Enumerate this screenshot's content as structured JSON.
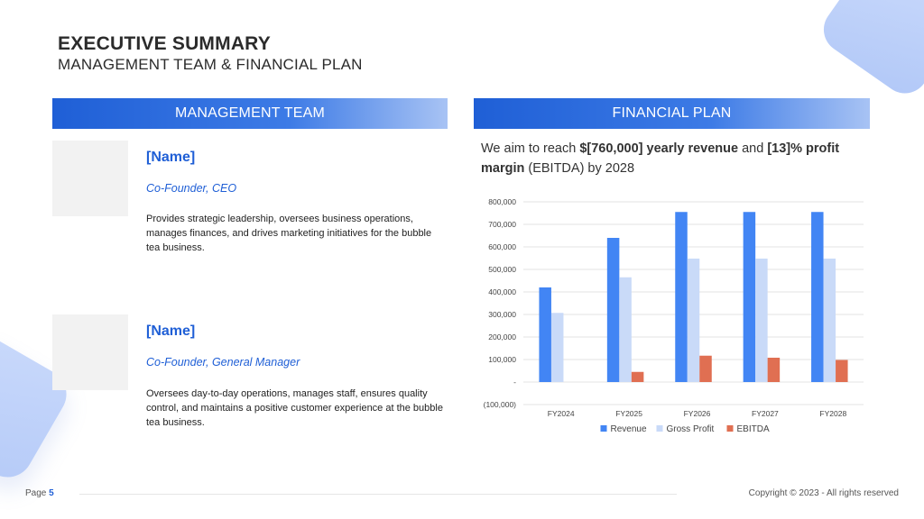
{
  "header": {
    "title": "EXECUTIVE SUMMARY",
    "subtitle": "MANAGEMENT TEAM & FINANCIAL PLAN"
  },
  "management": {
    "heading": "MANAGEMENT TEAM",
    "members": [
      {
        "name": "[Name]",
        "role": "Co-Founder, CEO",
        "description": "Provides strategic leadership, oversees business operations, manages finances, and drives marketing initiatives for the bubble tea business."
      },
      {
        "name": "[Name]",
        "role": "Co-Founder, General Manager",
        "description": "Oversees day-to-day operations, manages staff, ensures quality control, and maintains a positive customer experience at the bubble tea business."
      }
    ]
  },
  "financial": {
    "heading": "FINANCIAL PLAN",
    "intro": {
      "t1": "We aim to reach ",
      "b1": "$[760,000] yearly revenue",
      "t2": " and ",
      "b2": "[13]% profit margin",
      "t3": " (EBITDA) by 2028"
    }
  },
  "chart_data": {
    "type": "bar",
    "categories": [
      "FY2024",
      "FY2025",
      "FY2026",
      "FY2027",
      "FY2028"
    ],
    "series": [
      {
        "name": "Revenue",
        "color": "#4285f4",
        "values": [
          420000,
          640000,
          755000,
          755000,
          755000
        ]
      },
      {
        "name": "Gross Profit",
        "color": "#c9daf8",
        "values": [
          307000,
          465000,
          548000,
          548000,
          548000
        ]
      },
      {
        "name": "EBITDA",
        "color": "#e06f52",
        "values": [
          0,
          45000,
          117000,
          108000,
          98000
        ]
      }
    ],
    "ylim": [
      -100000,
      800000
    ],
    "yticks": [
      -100000,
      0,
      100000,
      200000,
      300000,
      400000,
      500000,
      600000,
      700000,
      800000
    ],
    "ytick_labels": [
      "(100,000)",
      "-",
      "100,000",
      "200,000",
      "300,000",
      "400,000",
      "500,000",
      "600,000",
      "700,000",
      "800,000"
    ],
    "grid": true,
    "legend": "bottom"
  },
  "footer": {
    "page_label": "Page",
    "page_number": "5",
    "copyright": "Copyright © 2023 - All rights reserved"
  }
}
